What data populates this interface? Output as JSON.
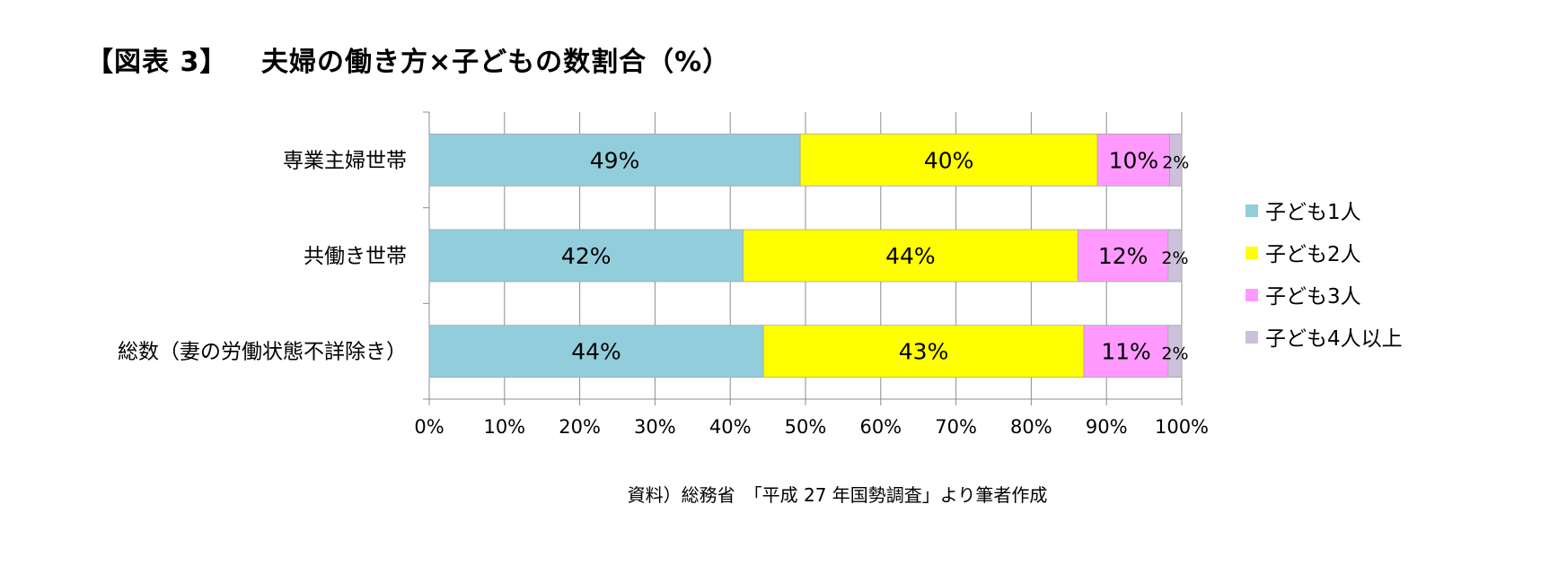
{
  "figure_label": "【図表 3】",
  "title": "夫婦の働き方×子どもの数割合（%）",
  "source": "資料）総務省　「平成 27 年国勢調査」より筆者作成",
  "chart_data": {
    "type": "bar",
    "orientation": "horizontal",
    "stacked": true,
    "categories": [
      "専業主婦世帯",
      "共働き世帯",
      "総数（妻の労働状態不詳除き）"
    ],
    "series": [
      {
        "name": "子ども1人",
        "color": "#92CDDC",
        "values": [
          49.3,
          41.7,
          44.4
        ],
        "labels": [
          "49%",
          "42%",
          "44%"
        ]
      },
      {
        "name": "子ども2人",
        "color": "#FFFF00",
        "values": [
          39.5,
          44.5,
          42.6
        ],
        "labels": [
          "40%",
          "44%",
          "43%"
        ]
      },
      {
        "name": "子ども3人",
        "color": "#FF99FF",
        "values": [
          9.6,
          12.0,
          11.2
        ],
        "labels": [
          "10%",
          "12%",
          "11%"
        ]
      },
      {
        "name": "子ども4人以上",
        "color": "#CCC0DA",
        "values": [
          1.6,
          1.8,
          1.8
        ],
        "labels": [
          "2%",
          "2%",
          "2%"
        ]
      }
    ],
    "x_ticks": [
      "0%",
      "10%",
      "20%",
      "30%",
      "40%",
      "50%",
      "60%",
      "70%",
      "80%",
      "90%",
      "100%"
    ],
    "xlim": [
      0,
      100
    ],
    "grid": true,
    "legend_position": "right"
  }
}
